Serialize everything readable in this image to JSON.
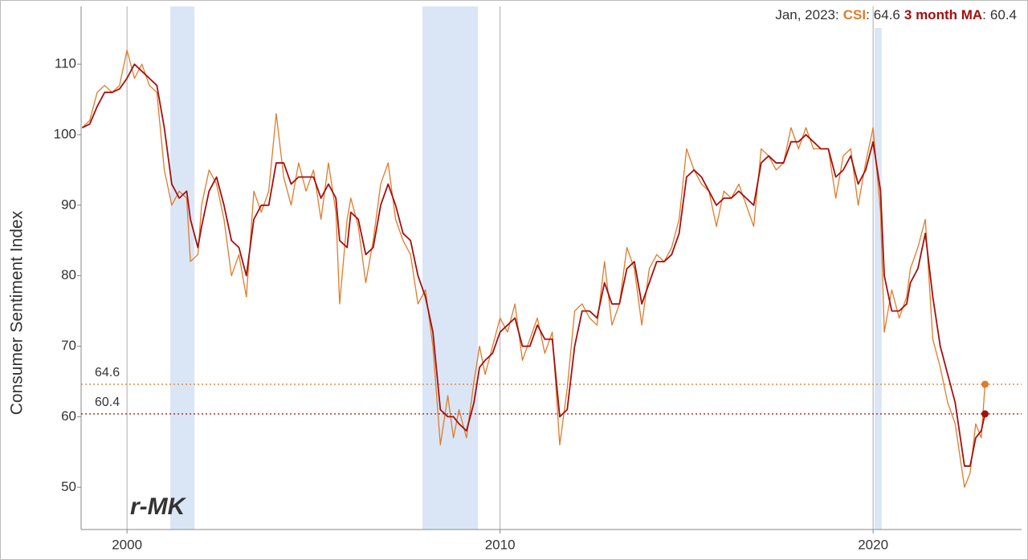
{
  "chart_data": {
    "type": "line",
    "y_label": "Consumer Sentiment Index",
    "watermark": "r-MK",
    "annotation": {
      "date": "Jan, 2023:",
      "sep": ":"
    },
    "xlim": [
      1998.77,
      2023.98
    ],
    "xticks": [
      2000,
      2010,
      2020
    ],
    "ylim": [
      44,
      118.2
    ],
    "yticks": [
      50,
      60,
      70,
      80,
      90,
      100,
      110
    ],
    "x_grid": true,
    "recessions": [
      [
        2001.16,
        2001.81
      ],
      [
        2007.92,
        2009.41
      ],
      [
        2020.04,
        2020.23
      ]
    ],
    "recession_color": "#dae6f6",
    "x": [
      1998.8,
      1999.0,
      1999.2,
      1999.4,
      1999.6,
      1999.8,
      2000.0,
      2000.2,
      2000.4,
      2000.6,
      2000.8,
      2001.0,
      2001.2,
      2001.4,
      2001.6,
      2001.7,
      2001.9,
      2002.0,
      2002.2,
      2002.4,
      2002.6,
      2002.8,
      2003.0,
      2003.2,
      2003.4,
      2003.6,
      2003.8,
      2004.0,
      2004.2,
      2004.4,
      2004.6,
      2004.8,
      2005.0,
      2005.2,
      2005.4,
      2005.6,
      2005.7,
      2005.9,
      2006.0,
      2006.2,
      2006.4,
      2006.6,
      2006.8,
      2007.0,
      2007.2,
      2007.4,
      2007.6,
      2007.8,
      2008.0,
      2008.2,
      2008.4,
      2008.6,
      2008.75,
      2008.9,
      2009.1,
      2009.3,
      2009.45,
      2009.6,
      2009.8,
      2010.0,
      2010.2,
      2010.4,
      2010.6,
      2010.8,
      2011.0,
      2011.2,
      2011.4,
      2011.6,
      2011.8,
      2012.0,
      2012.2,
      2012.4,
      2012.6,
      2012.8,
      2013.0,
      2013.2,
      2013.4,
      2013.6,
      2013.8,
      2014.0,
      2014.2,
      2014.4,
      2014.6,
      2014.8,
      2015.0,
      2015.2,
      2015.4,
      2015.6,
      2015.8,
      2016.0,
      2016.2,
      2016.4,
      2016.6,
      2016.8,
      2017.0,
      2017.2,
      2017.4,
      2017.6,
      2017.8,
      2018.0,
      2018.2,
      2018.4,
      2018.6,
      2018.8,
      2019.0,
      2019.2,
      2019.4,
      2019.6,
      2019.8,
      2020.0,
      2020.2,
      2020.3,
      2020.5,
      2020.7,
      2020.9,
      2021.0,
      2021.2,
      2021.4,
      2021.6,
      2021.8,
      2022.0,
      2022.2,
      2022.45,
      2022.6,
      2022.75,
      2022.9,
      2023.0
    ],
    "series": [
      {
        "name": "CSI",
        "color": "#e07b2a",
        "width": 1.3,
        "values": [
          101,
          102,
          106,
          107,
          106,
          107,
          112,
          108,
          110,
          107,
          106,
          95,
          90,
          92,
          91,
          82,
          83,
          90,
          95,
          93,
          88,
          80,
          83,
          77,
          92,
          89,
          92,
          103,
          94,
          90,
          96,
          92,
          95,
          88,
          96,
          89,
          76,
          88,
          91,
          87,
          79,
          85,
          93,
          96,
          88,
          85,
          83,
          76,
          78,
          70,
          56,
          63,
          57,
          61,
          57,
          65,
          70,
          66,
          70,
          74,
          72,
          76,
          68,
          71,
          74,
          69,
          72,
          56,
          64,
          75,
          76,
          74,
          73,
          82,
          73,
          76,
          84,
          81,
          73,
          81,
          83,
          82,
          84,
          88,
          98,
          95,
          93,
          92,
          87,
          92,
          91,
          93,
          90,
          87,
          98,
          97,
          95,
          96,
          101,
          98,
          101,
          98,
          98,
          98,
          91,
          97,
          98,
          90,
          96,
          101,
          89,
          72,
          78,
          74,
          77,
          81,
          84,
          88,
          71,
          67,
          62,
          59,
          50,
          52,
          59,
          57,
          64.6
        ]
      },
      {
        "name": "3 month MA",
        "color": "#a3100f",
        "width": 1.8,
        "values": [
          101,
          101.5,
          104,
          106,
          106,
          106.5,
          108,
          110,
          109,
          108,
          107,
          101,
          93,
          91,
          92,
          88,
          84,
          87,
          92,
          94,
          90,
          85,
          84,
          80,
          88,
          90,
          90,
          96,
          96,
          93,
          94,
          94,
          94,
          91,
          93,
          91,
          85,
          84,
          89,
          88,
          83,
          84,
          90,
          93,
          90,
          86,
          85,
          80,
          77,
          72,
          61,
          60,
          60,
          59,
          58,
          62,
          67,
          68,
          69,
          72,
          73,
          74,
          70,
          70,
          73,
          71,
          71,
          60,
          61,
          70,
          75,
          75,
          74,
          79,
          76,
          76,
          81,
          82,
          76,
          79,
          82,
          82,
          83,
          86,
          94,
          95,
          94,
          92,
          90,
          91,
          91,
          92,
          91,
          90,
          96,
          97,
          96,
          96,
          99,
          99,
          100,
          99,
          98,
          98,
          94,
          95,
          97,
          93,
          95,
          99,
          92,
          80,
          75,
          75,
          76,
          79,
          81,
          86,
          77,
          70,
          66,
          62,
          53,
          53,
          57,
          58,
          60.4
        ]
      }
    ]
  }
}
